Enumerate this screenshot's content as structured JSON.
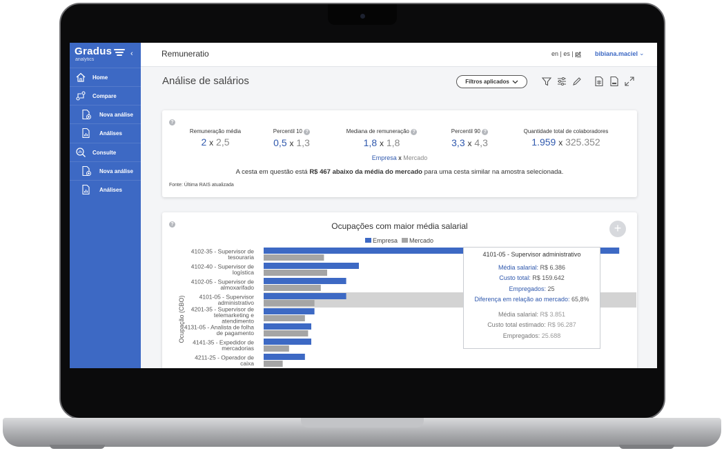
{
  "sidebar": {
    "brand": "Gradus",
    "brand_sub": "analytics",
    "items": [
      {
        "label": "Home",
        "icon": "home-icon",
        "level": "top"
      },
      {
        "label": "Compare",
        "icon": "compare-icon",
        "level": "top"
      },
      {
        "label": "Nova análise",
        "icon": "new-analysis-icon",
        "level": "sub"
      },
      {
        "label": "Análises",
        "icon": "analyses-icon",
        "level": "sub"
      },
      {
        "label": "Consulte",
        "icon": "consult-icon",
        "level": "top"
      },
      {
        "label": "Nova análise",
        "icon": "new-analysis-icon",
        "level": "sub"
      },
      {
        "label": "Análises",
        "icon": "analyses-icon",
        "level": "sub"
      }
    ]
  },
  "header": {
    "title": "Remuneratio",
    "lang": [
      "en",
      "es",
      "pt"
    ],
    "lang_sep": "|",
    "user": "bibiana.maciel"
  },
  "page": {
    "title": "Análise de salários",
    "filter_button": "Filtros aplicados"
  },
  "kpis": [
    {
      "label": "Remuneração média",
      "company": "2",
      "market": "2,5",
      "help": false
    },
    {
      "label": "Percentil 10",
      "company": "0,5",
      "market": "1,3",
      "help": true
    },
    {
      "label": "Mediana de remuneração",
      "company": "1,8",
      "market": "1,8",
      "help": true
    },
    {
      "label": "Percentil 90",
      "company": "3,3",
      "market": "4,3",
      "help": true
    },
    {
      "label": "Quantidade total de colaboradores",
      "company": "1.959",
      "market": "325.352",
      "help": false
    }
  ],
  "kpi_sep": "x",
  "legend": {
    "company": "Empresa",
    "sep": "x",
    "market": "Mercado"
  },
  "summary": {
    "pre": "A cesta em questão está ",
    "bold": "R$ 467 abaixo da média do mercado",
    "post": " para uma cesta similar na amostra selecionada."
  },
  "source": "Fonte: Última RAIS atualizada",
  "colors": {
    "company": "#3d69c4",
    "market": "#a5a5a5",
    "highlight": "#d3d3d3",
    "sidebar": "#3d69c4"
  },
  "chart_data": {
    "type": "bar",
    "orientation": "horizontal",
    "title": "Ocupações com maior média salarial",
    "ylabel": "Ocupação (CBO)",
    "legend": "top",
    "categories": [
      [
        "4102-35 - Supervisor de",
        "tesouraria"
      ],
      [
        "4102-40 - Supervisor de",
        "logística"
      ],
      [
        "4102-05 - Supervisor de",
        "almoxarifado"
      ],
      [
        "4101-05 - Supervisor",
        "administrativo"
      ],
      [
        "4201-35 - Supervisor de",
        "telemarketing e",
        "atendimento"
      ],
      [
        "4131-05 - Analista de folha",
        "de pagamento"
      ],
      [
        "4141-35 - Expedidor de",
        "mercadorias"
      ],
      [
        "4211-25 - Operador de",
        "caixa"
      ]
    ],
    "series": [
      {
        "name": "Empresa",
        "values": [
          11.2,
          3.0,
          2.6,
          2.6,
          1.6,
          1.5,
          1.5,
          1.3
        ]
      },
      {
        "name": "Mercado",
        "values": [
          1.9,
          2.0,
          1.8,
          1.6,
          1.3,
          1.4,
          0.8,
          0.6
        ]
      }
    ],
    "highlight_index": 3
  },
  "tooltip": {
    "title": "4101-05 - Supervisor administrativo",
    "company_lines": [
      {
        "label": "Média salarial:",
        "value": "R$ 6.386"
      },
      {
        "label": "Custo total:",
        "value": "R$ 159.642"
      },
      {
        "label": "Empregados:",
        "value": "25"
      },
      {
        "label": "Diferença em relação ao mercado:",
        "value": "65,8%"
      }
    ],
    "market_lines": [
      {
        "label": "Média salarial:",
        "value": "R$ 3.851"
      },
      {
        "label": "Custo total estimado:",
        "value": "R$ 96.287"
      },
      {
        "label": "Empregados:",
        "value": "25.688"
      }
    ]
  }
}
